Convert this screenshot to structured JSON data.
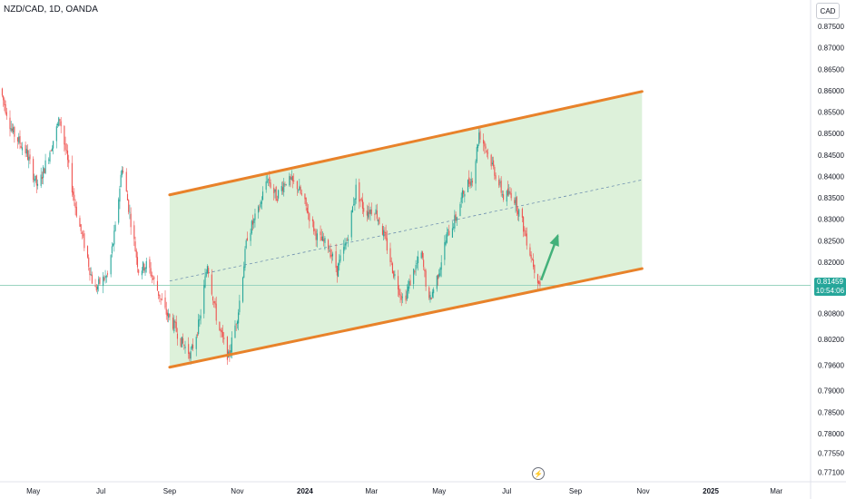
{
  "header": {
    "symbol_title": "NZD/CAD, 1D, OANDA",
    "currency": "CAD"
  },
  "price_tag": {
    "price": "0.81459",
    "countdown": "10:54:06"
  },
  "colors": {
    "channel_line": "#e8822a",
    "channel_fill": "#d9f0d6",
    "midline": "#6f90b0",
    "bull": "#26a69a",
    "bear": "#ef5350",
    "arrow": "#43b17a",
    "price_line": "#9ad4c0"
  },
  "icons": {
    "events": "lightning-icon"
  },
  "chart_data": {
    "type": "candlestick",
    "title": "NZD/CAD, 1D, OANDA",
    "y_axis": {
      "unit": "CAD",
      "range": [
        0.769,
        0.8805
      ],
      "ticks": [
        "0.87500",
        "0.87000",
        "0.86500",
        "0.86000",
        "0.85500",
        "0.85000",
        "0.84500",
        "0.84000",
        "0.83500",
        "0.83000",
        "0.82500",
        "0.82000",
        "0.80800",
        "0.80200",
        "0.79600",
        "0.79000",
        "0.78500",
        "0.78000",
        "0.77550",
        "0.77100"
      ]
    },
    "x_axis": {
      "range": [
        "2023-04-01",
        "2025-04-01"
      ],
      "ticks": [
        {
          "label": "May",
          "date": "2023-05-01"
        },
        {
          "label": "Jul",
          "date": "2023-07-01"
        },
        {
          "label": "Sep",
          "date": "2023-09-01"
        },
        {
          "label": "Nov",
          "date": "2023-11-01"
        },
        {
          "label": "2024",
          "date": "2024-01-01",
          "bold": true
        },
        {
          "label": "Mar",
          "date": "2024-03-01"
        },
        {
          "label": "May",
          "date": "2024-05-01"
        },
        {
          "label": "Jul",
          "date": "2024-07-01"
        },
        {
          "label": "Sep",
          "date": "2024-09-01"
        },
        {
          "label": "Nov",
          "date": "2024-11-01"
        },
        {
          "label": "2025",
          "date": "2025-01-01",
          "bold": true
        },
        {
          "label": "Mar",
          "date": "2025-03-01"
        }
      ]
    },
    "last_price": 0.81459,
    "price_path": [
      [
        "2023-04-01",
        0.8605
      ],
      [
        "2023-04-12",
        0.8505
      ],
      [
        "2023-04-25",
        0.8455
      ],
      [
        "2023-05-05",
        0.8372
      ],
      [
        "2023-05-15",
        0.8452
      ],
      [
        "2023-05-25",
        0.8535
      ],
      [
        "2023-06-02",
        0.8418
      ],
      [
        "2023-06-10",
        0.8302
      ],
      [
        "2023-06-18",
        0.8222
      ],
      [
        "2023-06-25",
        0.8132
      ],
      [
        "2023-07-01",
        0.8156
      ],
      [
        "2023-07-07",
        0.8168
      ],
      [
        "2023-07-14",
        0.8277
      ],
      [
        "2023-07-20",
        0.8425
      ],
      [
        "2023-07-27",
        0.8312
      ],
      [
        "2023-08-04",
        0.8182
      ],
      [
        "2023-08-12",
        0.8195
      ],
      [
        "2023-08-20",
        0.8142
      ],
      [
        "2023-08-28",
        0.8085
      ],
      [
        "2023-09-05",
        0.8052
      ],
      [
        "2023-09-12",
        0.8012
      ],
      [
        "2023-09-20",
        0.7985
      ],
      [
        "2023-09-28",
        0.8062
      ],
      [
        "2023-10-05",
        0.8198
      ],
      [
        "2023-10-14",
        0.8058
      ],
      [
        "2023-10-24",
        0.7978
      ],
      [
        "2023-11-02",
        0.8088
      ],
      [
        "2023-11-10",
        0.8262
      ],
      [
        "2023-11-20",
        0.8318
      ],
      [
        "2023-11-28",
        0.8398
      ],
      [
        "2023-12-06",
        0.8352
      ],
      [
        "2023-12-15",
        0.8392
      ],
      [
        "2023-12-25",
        0.8378
      ],
      [
        "2024-01-03",
        0.8322
      ],
      [
        "2024-01-12",
        0.8258
      ],
      [
        "2024-01-22",
        0.8238
      ],
      [
        "2024-01-30",
        0.8182
      ],
      [
        "2024-02-08",
        0.8252
      ],
      [
        "2024-02-16",
        0.8372
      ],
      [
        "2024-02-24",
        0.8318
      ],
      [
        "2024-03-04",
        0.8325
      ],
      [
        "2024-03-12",
        0.8265
      ],
      [
        "2024-03-21",
        0.8175
      ],
      [
        "2024-03-30",
        0.8108
      ],
      [
        "2024-04-08",
        0.8178
      ],
      [
        "2024-04-15",
        0.8218
      ],
      [
        "2024-04-22",
        0.8105
      ],
      [
        "2024-04-30",
        0.8172
      ],
      [
        "2024-05-08",
        0.8262
      ],
      [
        "2024-05-16",
        0.8302
      ],
      [
        "2024-05-24",
        0.8372
      ],
      [
        "2024-06-01",
        0.8402
      ],
      [
        "2024-06-06",
        0.8502
      ],
      [
        "2024-06-12",
        0.8468
      ],
      [
        "2024-06-20",
        0.8412
      ],
      [
        "2024-06-28",
        0.8352
      ],
      [
        "2024-07-06",
        0.8362
      ],
      [
        "2024-07-14",
        0.8302
      ],
      [
        "2024-07-20",
        0.8242
      ],
      [
        "2024-07-27",
        0.8178
      ],
      [
        "2024-07-31",
        0.8146
      ]
    ],
    "channel": {
      "upper": [
        [
          "2023-09-01",
          0.8357
        ],
        [
          "2024-10-31",
          0.8598
        ]
      ],
      "lower": [
        [
          "2023-09-01",
          0.7955
        ],
        [
          "2024-10-31",
          0.8185
        ]
      ],
      "midline": [
        [
          "2023-09-01",
          0.8156
        ],
        [
          "2024-10-31",
          0.8392
        ]
      ]
    },
    "arrow": {
      "from": [
        "2024-08-01",
        0.8158
      ],
      "to": [
        "2024-08-16",
        0.8262
      ]
    },
    "grid": false
  }
}
